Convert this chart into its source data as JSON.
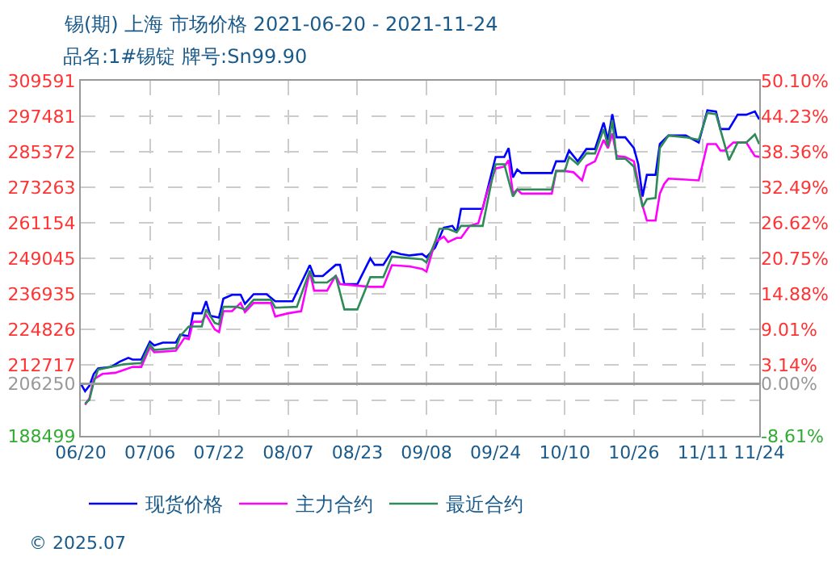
{
  "chart_data": {
    "type": "line",
    "title": "锡(期) 上海 市场价格 2021-06-20 - 2021-11-24",
    "subtitle": "品名:1#锡锭 牌号:Sn99.90",
    "annotations": [
      "© 2025.07"
    ],
    "xlim": [
      "2021-06-20",
      "2021-11-24"
    ],
    "xticks": [
      {
        "value": "2021-06-20",
        "label": "06/20"
      },
      {
        "value": "2021-07-06",
        "label": "07/06"
      },
      {
        "value": "2021-07-22",
        "label": "07/22"
      },
      {
        "value": "2021-08-07",
        "label": "08/07"
      },
      {
        "value": "2021-08-23",
        "label": "08/23"
      },
      {
        "value": "2021-09-08",
        "label": "09/08"
      },
      {
        "value": "2021-09-24",
        "label": "09/24"
      },
      {
        "value": "2021-10-10",
        "label": "10/10"
      },
      {
        "value": "2021-10-26",
        "label": "10/26"
      },
      {
        "value": "2021-11-11",
        "label": "11/11"
      },
      {
        "value": "2021-11-24",
        "label": "11/24"
      }
    ],
    "ylim": [
      188499,
      309591
    ],
    "yticks": [
      188499,
      {
        "value": 200608,
        "label": null
      },
      206250,
      212717,
      224826,
      236935,
      249045,
      261154,
      273263,
      285372,
      297481,
      309591
    ],
    "y2lim": [
      -8.61,
      50.1
    ],
    "y2ticks": [
      {
        "value": -8.61,
        "label": "-8.61%"
      },
      {
        "value": 0,
        "label": "0.00%"
      },
      {
        "value": 3.14,
        "label": "3.14%"
      },
      {
        "value": 9.01,
        "label": "9.01%"
      },
      {
        "value": 14.88,
        "label": "14.88%"
      },
      {
        "value": 20.75,
        "label": "20.75%"
      },
      {
        "value": 26.62,
        "label": "26.62%"
      },
      {
        "value": 32.49,
        "label": "32.49%"
      },
      {
        "value": 38.36,
        "label": "38.36%"
      },
      {
        "value": 44.23,
        "label": "44.23%"
      },
      {
        "value": 50.1,
        "label": "50.10%"
      }
    ],
    "ref_lines": [
      {
        "axis": "y",
        "value": 206250,
        "label": null,
        "color": "#999999"
      }
    ],
    "grid": true,
    "legend": "bottom",
    "line_style": "solid",
    "marker": "none",
    "series": [
      {
        "name": "现货价格",
        "color": "#0000ff",
        "x": [
          "2021-06-20",
          "2021-06-21",
          "2021-06-22",
          "2021-06-23",
          "2021-06-24",
          "2021-06-27",
          "2021-06-29",
          "2021-07-01",
          "2021-07-02",
          "2021-07-04",
          "2021-07-06",
          "2021-07-07",
          "2021-07-09",
          "2021-07-12",
          "2021-07-13",
          "2021-07-15",
          "2021-07-16",
          "2021-07-18",
          "2021-07-19",
          "2021-07-20",
          "2021-07-22",
          "2021-07-23",
          "2021-07-25",
          "2021-07-27",
          "2021-07-28",
          "2021-07-30",
          "2021-08-02",
          "2021-08-04",
          "2021-08-08",
          "2021-08-12",
          "2021-08-13",
          "2021-08-15",
          "2021-08-18",
          "2021-08-19",
          "2021-08-20",
          "2021-08-23",
          "2021-08-26",
          "2021-08-27",
          "2021-08-29",
          "2021-08-31",
          "2021-09-02",
          "2021-09-04",
          "2021-09-07",
          "2021-09-08",
          "2021-09-10",
          "2021-09-12",
          "2021-09-14",
          "2021-09-15",
          "2021-09-16",
          "2021-09-21",
          "2021-09-24",
          "2021-09-26",
          "2021-09-27",
          "2021-09-28",
          "2021-09-29",
          "2021-09-30",
          "2021-10-07",
          "2021-10-08",
          "2021-10-10",
          "2021-10-11",
          "2021-10-13",
          "2021-10-15",
          "2021-10-17",
          "2021-10-19",
          "2021-10-20",
          "2021-10-21",
          "2021-10-22",
          "2021-10-24",
          "2021-10-26",
          "2021-10-27",
          "2021-10-28",
          "2021-10-29",
          "2021-10-31",
          "2021-11-01",
          "2021-11-03",
          "2021-11-07",
          "2021-11-10",
          "2021-11-12",
          "2021-11-14",
          "2021-11-15",
          "2021-11-17",
          "2021-11-19",
          "2021-11-21",
          "2021-11-23",
          "2021-11-24"
        ],
        "values": [
          206300,
          203700,
          205600,
          209600,
          211500,
          212000,
          213800,
          215100,
          214500,
          214500,
          220600,
          219300,
          220300,
          220300,
          223000,
          222500,
          230300,
          230300,
          234400,
          229400,
          228800,
          235300,
          236600,
          236600,
          233500,
          236800,
          236800,
          234400,
          234400,
          246700,
          243000,
          243000,
          246800,
          246800,
          240200,
          240200,
          249000,
          246800,
          246800,
          251400,
          250500,
          250000,
          250500,
          249400,
          252700,
          259500,
          260100,
          257900,
          265900,
          265900,
          283600,
          283600,
          286600,
          276600,
          279300,
          278100,
          278100,
          282100,
          282100,
          285800,
          282100,
          286300,
          286300,
          295300,
          289400,
          298200,
          290300,
          290300,
          286600,
          281100,
          270100,
          277500,
          277500,
          288000,
          290900,
          290900,
          288500,
          299500,
          299100,
          293100,
          293100,
          298000,
          298000,
          299100,
          296400
        ]
      },
      {
        "name": "主力合约",
        "color": "#ff00ff",
        "x": [
          "2021-06-21",
          "2021-06-22",
          "2021-06-23",
          "2021-06-25",
          "2021-06-28",
          "2021-07-02",
          "2021-07-04",
          "2021-07-06",
          "2021-07-07",
          "2021-07-12",
          "2021-07-14",
          "2021-07-15",
          "2021-07-16",
          "2021-07-18",
          "2021-07-19",
          "2021-07-21",
          "2021-07-22",
          "2021-07-23",
          "2021-07-25",
          "2021-07-27",
          "2021-07-28",
          "2021-07-30",
          "2021-08-03",
          "2021-08-04",
          "2021-08-07",
          "2021-08-10",
          "2021-08-12",
          "2021-08-13",
          "2021-08-16",
          "2021-08-18",
          "2021-08-19",
          "2021-08-26",
          "2021-08-29",
          "2021-08-31",
          "2021-09-04",
          "2021-09-07",
          "2021-09-08",
          "2021-09-10",
          "2021-09-12",
          "2021-09-13",
          "2021-09-15",
          "2021-09-16",
          "2021-09-18",
          "2021-09-20",
          "2021-09-22",
          "2021-09-24",
          "2021-09-26",
          "2021-09-27",
          "2021-09-28",
          "2021-09-29",
          "2021-09-30",
          "2021-10-07",
          "2021-10-08",
          "2021-10-10",
          "2021-10-12",
          "2021-10-14",
          "2021-10-15",
          "2021-10-17",
          "2021-10-19",
          "2021-10-20",
          "2021-10-21",
          "2021-10-22",
          "2021-10-24",
          "2021-10-26",
          "2021-10-28",
          "2021-10-29",
          "2021-10-31",
          "2021-11-01",
          "2021-11-02",
          "2021-11-03",
          "2021-11-10",
          "2021-11-12",
          "2021-11-14",
          "2021-11-15",
          "2021-11-16",
          "2021-11-18",
          "2021-11-21",
          "2021-11-23",
          "2021-11-24"
        ],
        "values": [
          199100,
          201300,
          207800,
          209600,
          210000,
          212000,
          212000,
          218800,
          217000,
          217500,
          221900,
          221500,
          227400,
          227400,
          229800,
          224800,
          223900,
          231000,
          231000,
          233800,
          230700,
          233800,
          233800,
          229200,
          230300,
          231000,
          244500,
          238000,
          238000,
          243200,
          240200,
          239300,
          239300,
          246700,
          246300,
          245400,
          244500,
          254600,
          256400,
          254600,
          256000,
          256000,
          260100,
          261000,
          271400,
          279700,
          280300,
          282500,
          271100,
          272500,
          271100,
          271100,
          278800,
          278800,
          278400,
          275600,
          280600,
          282100,
          289400,
          286600,
          291600,
          283900,
          283600,
          282100,
          267000,
          261900,
          261900,
          271100,
          274400,
          276200,
          275600,
          288000,
          288000,
          285800,
          285800,
          288500,
          288500,
          283900,
          283600
        ]
      },
      {
        "name": "最近合约",
        "color": "#2e8b57",
        "x": [
          "2021-06-21",
          "2021-06-22",
          "2021-06-23",
          "2021-06-24",
          "2021-06-30",
          "2021-07-04",
          "2021-07-06",
          "2021-07-07",
          "2021-07-12",
          "2021-07-13",
          "2021-07-15",
          "2021-07-18",
          "2021-07-19",
          "2021-07-21",
          "2021-07-22",
          "2021-07-23",
          "2021-07-26",
          "2021-07-28",
          "2021-07-30",
          "2021-08-03",
          "2021-08-04",
          "2021-08-09",
          "2021-08-12",
          "2021-08-13",
          "2021-08-16",
          "2021-08-18",
          "2021-08-20",
          "2021-08-23",
          "2021-08-26",
          "2021-08-29",
          "2021-08-31",
          "2021-09-07",
          "2021-09-08",
          "2021-09-10",
          "2021-09-11",
          "2021-09-13",
          "2021-09-15",
          "2021-09-16",
          "2021-09-21",
          "2021-09-23",
          "2021-09-24",
          "2021-09-26",
          "2021-09-28",
          "2021-09-29",
          "2021-10-07",
          "2021-10-08",
          "2021-10-10",
          "2021-10-11",
          "2021-10-13",
          "2021-10-15",
          "2021-10-17",
          "2021-10-19",
          "2021-10-20",
          "2021-10-21",
          "2021-10-22",
          "2021-10-24",
          "2021-10-26",
          "2021-10-28",
          "2021-10-29",
          "2021-10-31",
          "2021-11-01",
          "2021-11-03",
          "2021-11-07",
          "2021-11-10",
          "2021-11-12",
          "2021-11-14",
          "2021-11-17",
          "2021-11-19",
          "2021-11-21",
          "2021-11-23",
          "2021-11-24"
        ],
        "values": [
          199500,
          200800,
          206800,
          211100,
          212900,
          213300,
          219700,
          217800,
          218400,
          222500,
          225800,
          225800,
          231600,
          227000,
          226500,
          232500,
          232500,
          231600,
          234900,
          234900,
          232200,
          232500,
          244800,
          240800,
          240800,
          243000,
          231600,
          231600,
          242600,
          242600,
          249600,
          248700,
          247600,
          254600,
          259100,
          259100,
          257900,
          260100,
          260100,
          274800,
          281100,
          281100,
          270100,
          272500,
          272500,
          278800,
          278800,
          283600,
          281100,
          284800,
          284800,
          293100,
          287200,
          296200,
          283000,
          283000,
          280300,
          266500,
          269200,
          269600,
          286600,
          290900,
          290300,
          289400,
          298600,
          298200,
          282500,
          288500,
          288500,
          291300,
          288000
        ]
      }
    ]
  }
}
